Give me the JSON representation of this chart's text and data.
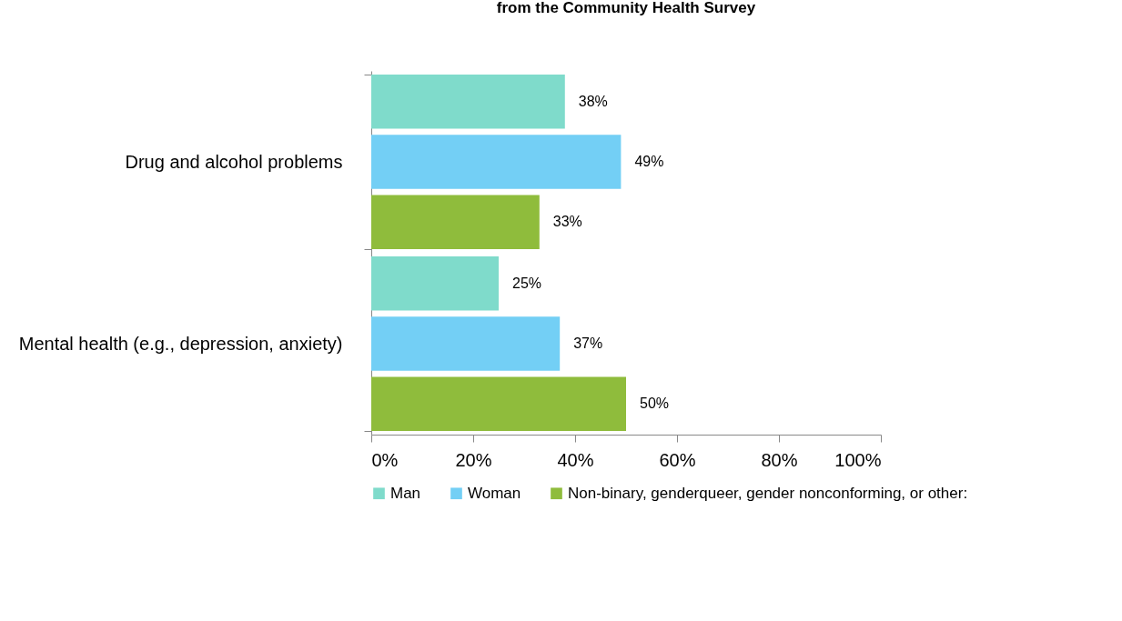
{
  "chart_data": {
    "type": "bar",
    "orientation": "horizontal",
    "title": "from the Community Health Survey",
    "categories": [
      "Drug and alcohol problems",
      "Mental health (e.g., depression, anxiety)"
    ],
    "series": [
      {
        "name": "Man",
        "color": "#7fdbcb",
        "values": [
          38,
          25
        ],
        "value_labels": [
          "38%",
          "25%"
        ]
      },
      {
        "name": "Woman",
        "color": "#73cff5",
        "values": [
          49,
          37
        ],
        "value_labels": [
          "49%",
          "37%"
        ]
      },
      {
        "name": "Non-binary, genderqueer, gender nonconforming, or other:",
        "color": "#8fbc3c",
        "values": [
          33,
          50
        ],
        "value_labels": [
          "33%",
          "50%"
        ]
      }
    ],
    "xlim": [
      0,
      100
    ],
    "xticks": [
      {
        "value": 0,
        "label": "0%"
      },
      {
        "value": 20,
        "label": "20%"
      },
      {
        "value": 40,
        "label": "40%"
      },
      {
        "value": 60,
        "label": "60%"
      },
      {
        "value": 80,
        "label": "80%"
      },
      {
        "value": 100,
        "label": "100%"
      }
    ],
    "grid": false,
    "legend": "bottom"
  }
}
